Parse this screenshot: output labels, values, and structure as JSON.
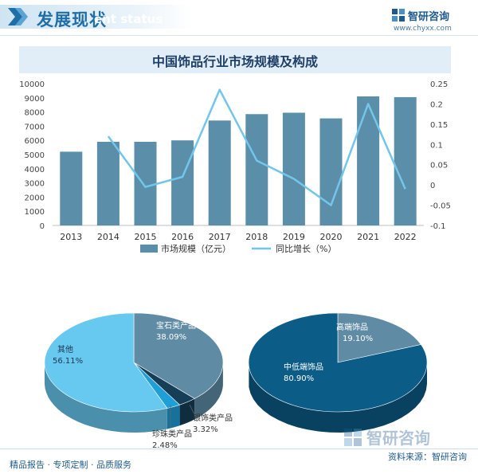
{
  "header": {
    "title": "发展现状",
    "subtitle_en": "ent status"
  },
  "brand": {
    "name": "智研咨询",
    "url": "www.chyxx.com",
    "icon": "zhiyan-logo-icon"
  },
  "footer": {
    "left": "精品报告 · 专项定制 · 品质服务",
    "source": "资料来源：智研咨询"
  },
  "colors": {
    "bar": "#5b8ea8",
    "line": "#72c6ec",
    "pie1_jewelry": "#5f8ba5",
    "pie1_other": "#67c8f0",
    "pie1_silver": "#163f57",
    "pie1_pearl": "#1e9fd8",
    "pie2_mid_low": "#0b5c86",
    "pie2_high": "#5f8ba5"
  },
  "chart_data": [
    {
      "type": "bar",
      "title": "中国饰品行业市场规模及构成",
      "categories": [
        "2013",
        "2014",
        "2015",
        "2016",
        "2017",
        "2018",
        "2019",
        "2020",
        "2021",
        "2022"
      ],
      "series": [
        {
          "name": "市场规模（亿元）",
          "type": "bar",
          "axis": "left",
          "values": [
            5200,
            5900,
            5900,
            6000,
            7400,
            7850,
            7950,
            7550,
            9100,
            9050
          ]
        },
        {
          "name": "同比增长（%）",
          "type": "line",
          "axis": "right",
          "values": [
            null,
            0.12,
            -0.005,
            0.02,
            0.235,
            0.06,
            0.015,
            -0.05,
            0.2,
            -0.01
          ]
        }
      ],
      "ylim_left": [
        0,
        10000
      ],
      "yticks_left": [
        "0",
        "1000",
        "2000",
        "3000",
        "4000",
        "5000",
        "6000",
        "7000",
        "8000",
        "9000",
        "10000"
      ],
      "ylim_right": [
        -0.1,
        0.25
      ],
      "yticks_right": [
        "-0.1",
        "-0.05",
        "0",
        "0.05",
        "0.1",
        "0.15",
        "0.2",
        "0.25"
      ],
      "legend": "bottom",
      "grid": false
    },
    {
      "type": "pie",
      "slices": [
        {
          "label": "宝石类产品",
          "value": 38.09,
          "text": "38.09%"
        },
        {
          "label": "其他",
          "value": 56.11,
          "text": "56.11%"
        },
        {
          "label": "珍珠类产品",
          "value": 2.48,
          "text": "2.48%"
        },
        {
          "label": "银饰类产品",
          "value": 3.32,
          "text": "3.32%"
        }
      ]
    },
    {
      "type": "pie",
      "slices": [
        {
          "label": "高端饰品",
          "value": 19.1,
          "text": "19.10%"
        },
        {
          "label": "中低端饰品",
          "value": 80.9,
          "text": "80.90%"
        }
      ]
    }
  ]
}
